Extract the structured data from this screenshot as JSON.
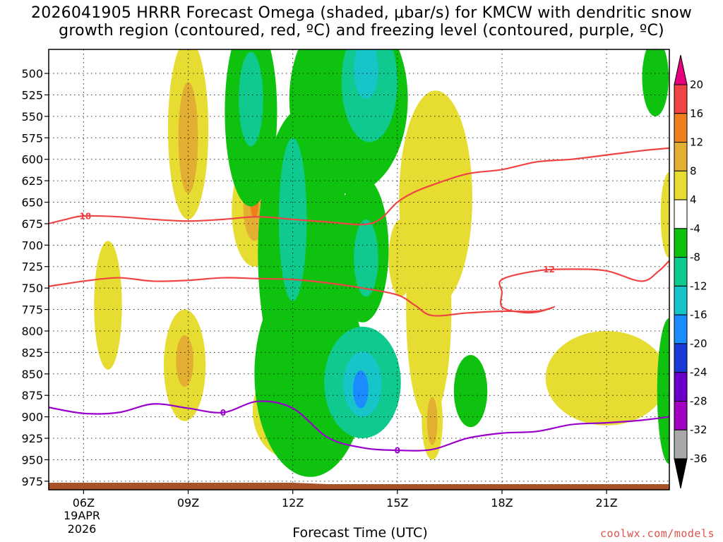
{
  "chart_data": {
    "type": "heatmap",
    "title_lines": [
      "2026041905 HRRR Forecast Omega (shaded, μbar/s) for KMCW with dendritic snow",
      "growth region (contoured, red, ºC) and freezing level (contoured, purple, ºC)"
    ],
    "xlabel": "Forecast Time (UTC)",
    "ylabel": "",
    "x_ticks": [
      "06Z",
      "09Z",
      "12Z",
      "15Z",
      "18Z",
      "21Z"
    ],
    "x_date_lines": [
      "19APR",
      "2026"
    ],
    "y_ticks": [
      500,
      525,
      550,
      575,
      600,
      625,
      650,
      675,
      700,
      725,
      750,
      775,
      800,
      825,
      850,
      875,
      900,
      925,
      950,
      975
    ],
    "xlim_hours": [
      5,
      22.8
    ],
    "ylim_hpa": [
      472,
      985
    ],
    "colorbar": {
      "levels": [
        20,
        16,
        12,
        8,
        4,
        -4,
        -8,
        -12,
        -16,
        -20,
        -24,
        -28,
        -32,
        -36
      ],
      "colors": [
        "#e6007e",
        "#ee4444",
        "#ee7f1e",
        "#e2af33",
        "#e6dc32",
        "#ffffff",
        "#10c210",
        "#0fc98f",
        "#17c4c8",
        "#1a8cff",
        "#1a3ad8",
        "#6a00c8",
        "#a000c0",
        "#a8a8a8",
        "#000000"
      ]
    },
    "contours": [
      {
        "label": "-18",
        "color": "#ee4444",
        "points": [
          [
            5,
            675
          ],
          [
            5.5,
            670
          ],
          [
            6,
            666
          ],
          [
            7,
            667
          ],
          [
            8,
            670
          ],
          [
            9,
            672
          ],
          [
            10,
            670
          ],
          [
            11,
            667
          ],
          [
            12,
            670
          ],
          [
            13,
            673
          ],
          [
            14,
            676
          ],
          [
            14.5,
            670
          ],
          [
            15,
            650
          ],
          [
            15.5,
            638
          ],
          [
            16,
            630
          ],
          [
            17,
            617
          ],
          [
            18,
            612
          ],
          [
            19,
            603
          ],
          [
            20,
            600
          ],
          [
            21,
            595
          ],
          [
            22,
            590
          ],
          [
            22.8,
            587
          ]
        ]
      },
      {
        "label": "-12",
        "color": "#ee4444",
        "points": [
          [
            5,
            748
          ],
          [
            6,
            742
          ],
          [
            7,
            738
          ],
          [
            8,
            742
          ],
          [
            9,
            741
          ],
          [
            10,
            738
          ],
          [
            11,
            739
          ],
          [
            12,
            740
          ],
          [
            13,
            744
          ],
          [
            14,
            750
          ],
          [
            15,
            758
          ],
          [
            15.5,
            770
          ],
          [
            16,
            782
          ],
          [
            17,
            779
          ],
          [
            18,
            777
          ],
          [
            19,
            777
          ],
          [
            19.5,
            772
          ],
          [
            19,
            778
          ],
          [
            18.5,
            778
          ],
          [
            18,
            772
          ],
          [
            18,
            755
          ],
          [
            18,
            740
          ],
          [
            19,
            730
          ],
          [
            20,
            728
          ],
          [
            21,
            730
          ],
          [
            22,
            742
          ],
          [
            22.5,
            730
          ],
          [
            22.8,
            718
          ]
        ]
      },
      {
        "label": "0",
        "color": "#9900cc",
        "points": [
          [
            5,
            889
          ],
          [
            6,
            896
          ],
          [
            7,
            895
          ],
          [
            8,
            885
          ],
          [
            9,
            890
          ],
          [
            10,
            895
          ],
          [
            11,
            882
          ],
          [
            12,
            890
          ],
          [
            13,
            924
          ],
          [
            14,
            936
          ],
          [
            15,
            939
          ],
          [
            16,
            938
          ],
          [
            17,
            925
          ],
          [
            18,
            919
          ],
          [
            19,
            917
          ],
          [
            20,
            909
          ],
          [
            21,
            907
          ],
          [
            22,
            904
          ],
          [
            22.8,
            900
          ]
        ]
      }
    ],
    "contour_labels": [
      "-18",
      "-12",
      "0"
    ]
  },
  "credit": "coolwx.com/models"
}
